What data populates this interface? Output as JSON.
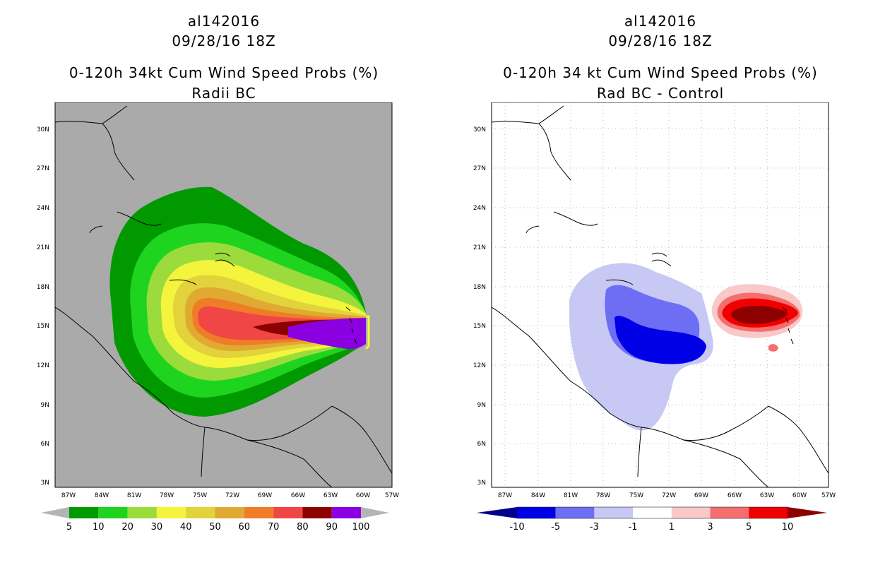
{
  "left": {
    "storm_id": "al142016",
    "datetime": "09/28/16 18Z",
    "title": "0-120h 34kt Cum Wind Speed Probs (%)",
    "subtitle": "Radii BC",
    "colorbar": {
      "labels": [
        "5",
        "10",
        "20",
        "30",
        "40",
        "50",
        "60",
        "70",
        "80",
        "90",
        "100"
      ],
      "colors": [
        "#009a00",
        "#1ed41e",
        "#9bdc3c",
        "#f4f43c",
        "#e2d23c",
        "#e0aa32",
        "#ef7d28",
        "#f04646",
        "#8c0000",
        "#8a00e0"
      ],
      "end_color": "#b4b4b4"
    }
  },
  "right": {
    "storm_id": "al142016",
    "datetime": "09/28/16 18Z",
    "title": "0-120h 34 kt Cum Wind Speed Probs (%)",
    "subtitle": "Rad BC - Control",
    "colorbar": {
      "labels": [
        "-10",
        "-5",
        "-3",
        "-1",
        "1",
        "3",
        "5",
        "10"
      ],
      "colors": [
        "#0000e6",
        "#6e6ef5",
        "#c8c8f5",
        "#ffffff",
        "#f9c8c8",
        "#f46e6e",
        "#f00000"
      ],
      "left_end": "#00008c",
      "right_end": "#8c0000"
    }
  },
  "map": {
    "lat_labels": [
      "30N",
      "27N",
      "24N",
      "21N",
      "18N",
      "15N",
      "12N",
      "9N",
      "6N",
      "3N"
    ],
    "lon_labels": [
      "87W",
      "84W",
      "81W",
      "78W",
      "75W",
      "72W",
      "69W",
      "66W",
      "63W",
      "60W",
      "57W"
    ]
  }
}
